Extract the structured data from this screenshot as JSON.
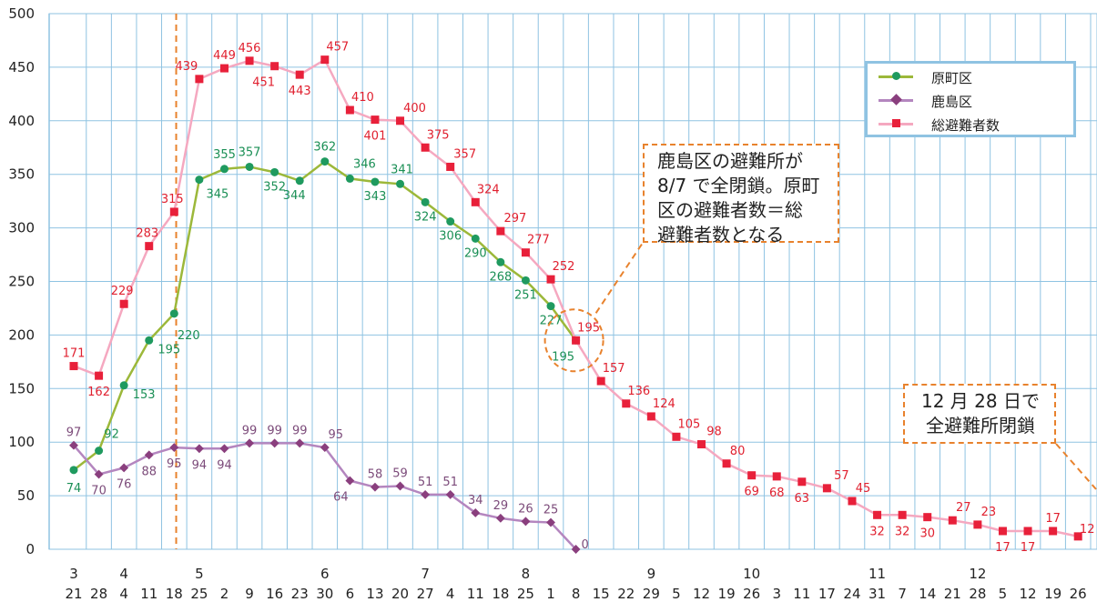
{
  "chart_data": {
    "type": "line",
    "title": "",
    "xlabel": "",
    "ylabel": "",
    "ylim": [
      0,
      500
    ],
    "yticks": [
      0,
      50,
      100,
      150,
      200,
      250,
      300,
      350,
      400,
      450,
      500
    ],
    "grid": true,
    "legend_position": "top-right",
    "x_months": [
      "3",
      "",
      "4",
      "",
      "",
      "5",
      "",
      "",
      "",
      "",
      "6",
      "",
      "",
      "",
      "7",
      "",
      "",
      "",
      "8",
      "",
      "",
      "",
      "",
      "9",
      "",
      "",
      "",
      "10",
      "",
      "",
      "",
      "",
      "11",
      "",
      "",
      "",
      "12",
      "",
      "",
      "",
      ""
    ],
    "x_days": [
      "21",
      "28",
      "4",
      "11",
      "18",
      "25",
      "2",
      "9",
      "16",
      "23",
      "30",
      "6",
      "13",
      "20",
      "27",
      "4",
      "11",
      "18",
      "25",
      "1",
      "8",
      "15",
      "22",
      "29",
      "5",
      "12",
      "19",
      "26",
      "3",
      "11",
      "17",
      "24",
      "31",
      "7",
      "14",
      "21",
      "28",
      "5",
      "12",
      "19",
      "26"
    ],
    "series": [
      {
        "name": "原町区",
        "color": "#9cb83a",
        "marker_color": "#1f9a5f",
        "marker": "circle",
        "label_color": "#1a8f55",
        "values": [
          74,
          92,
          153,
          195,
          220,
          345,
          355,
          357,
          352,
          344,
          362,
          346,
          343,
          341,
          324,
          306,
          290,
          268,
          251,
          227,
          195
        ]
      },
      {
        "name": "鹿島区",
        "color": "#b486bf",
        "marker_color": "#8a3f7e",
        "marker": "diamond",
        "label_color": "#7c4b7a",
        "values": [
          97,
          70,
          76,
          88,
          95,
          94,
          94,
          99,
          99,
          99,
          95,
          64,
          58,
          59,
          51,
          51,
          34,
          29,
          26,
          25,
          0
        ]
      },
      {
        "name": "総避難者数",
        "color": "#f5a8c0",
        "marker_color": "#e8203a",
        "marker": "square",
        "label_color": "#e0202f",
        "values": [
          171,
          162,
          229,
          283,
          315,
          439,
          449,
          456,
          451,
          443,
          457,
          410,
          401,
          400,
          375,
          357,
          324,
          297,
          277,
          252,
          195,
          157,
          136,
          124,
          105,
          98,
          80,
          69,
          68,
          63,
          57,
          45,
          32,
          32,
          30,
          27,
          23,
          17,
          17,
          17,
          12
        ]
      }
    ],
    "annotations": [
      {
        "lines": [
          "鹿島区の避難所が",
          "8/7 で全閉鎖。原町",
          "区の避難者数＝総",
          "避難者数となる"
        ]
      },
      {
        "lines": [
          "12 月 28 日で",
          "全避難所閉鎖"
        ]
      }
    ]
  }
}
